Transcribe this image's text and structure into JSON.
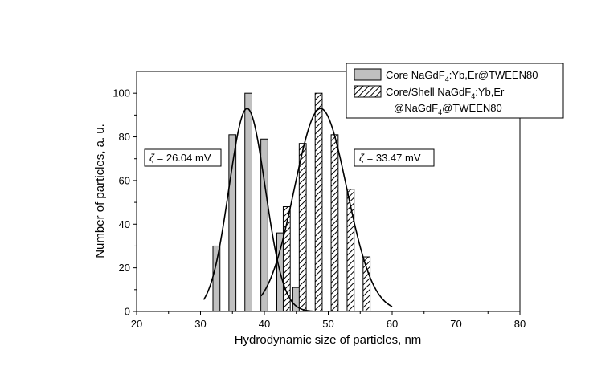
{
  "chart_data": {
    "type": "bar",
    "xlabel": "Hydrodynamic size of particles, nm",
    "ylabel": "Number of particles, a. u.",
    "xlim": [
      20,
      80
    ],
    "ylim": [
      0,
      110
    ],
    "xticks": [
      20,
      30,
      40,
      50,
      60,
      70,
      80
    ],
    "yticks": [
      0,
      20,
      40,
      60,
      80,
      100
    ],
    "grid": false,
    "legend_position": "top-right",
    "bar_width": 1.1,
    "series": [
      {
        "name_prefix": "Core NaGdF",
        "name_sub": "4",
        "name_suffix": ":Yb,Er@TWEEN80",
        "fill": "#c0c0c0",
        "pattern": "solid",
        "x": [
          32.5,
          35,
          37.5,
          40,
          42.5,
          45
        ],
        "values": [
          30,
          81,
          100,
          79,
          36,
          11
        ],
        "fit": {
          "type": "gaussian",
          "amplitude": 93,
          "mean": 37.3,
          "sigma": 2.85,
          "range": [
            30.5,
            47.5
          ]
        }
      },
      {
        "name_line1": "Core/Shell NaGdF",
        "name_line1_sub": "4",
        "name_line1_suffix": ":Yb,Er",
        "name_line2_prefix": "@NaGdF",
        "name_line2_sub": "4",
        "name_line2_suffix": "@TWEEN80",
        "fill": "#ffffff",
        "pattern": "hatch",
        "x": [
          43.5,
          46,
          48.5,
          51,
          53.5,
          56
        ],
        "values": [
          48,
          77,
          100,
          81,
          56,
          25
        ],
        "fit": {
          "type": "gaussian",
          "amplitude": 93,
          "mean": 48.8,
          "sigma": 4.1,
          "range": [
            39.5,
            60
          ]
        }
      }
    ],
    "annotations": [
      {
        "symbol": "ζ",
        "text": " = 26.04 mV"
      },
      {
        "symbol": "ζ",
        "text": " = 33.47 mV"
      }
    ]
  }
}
